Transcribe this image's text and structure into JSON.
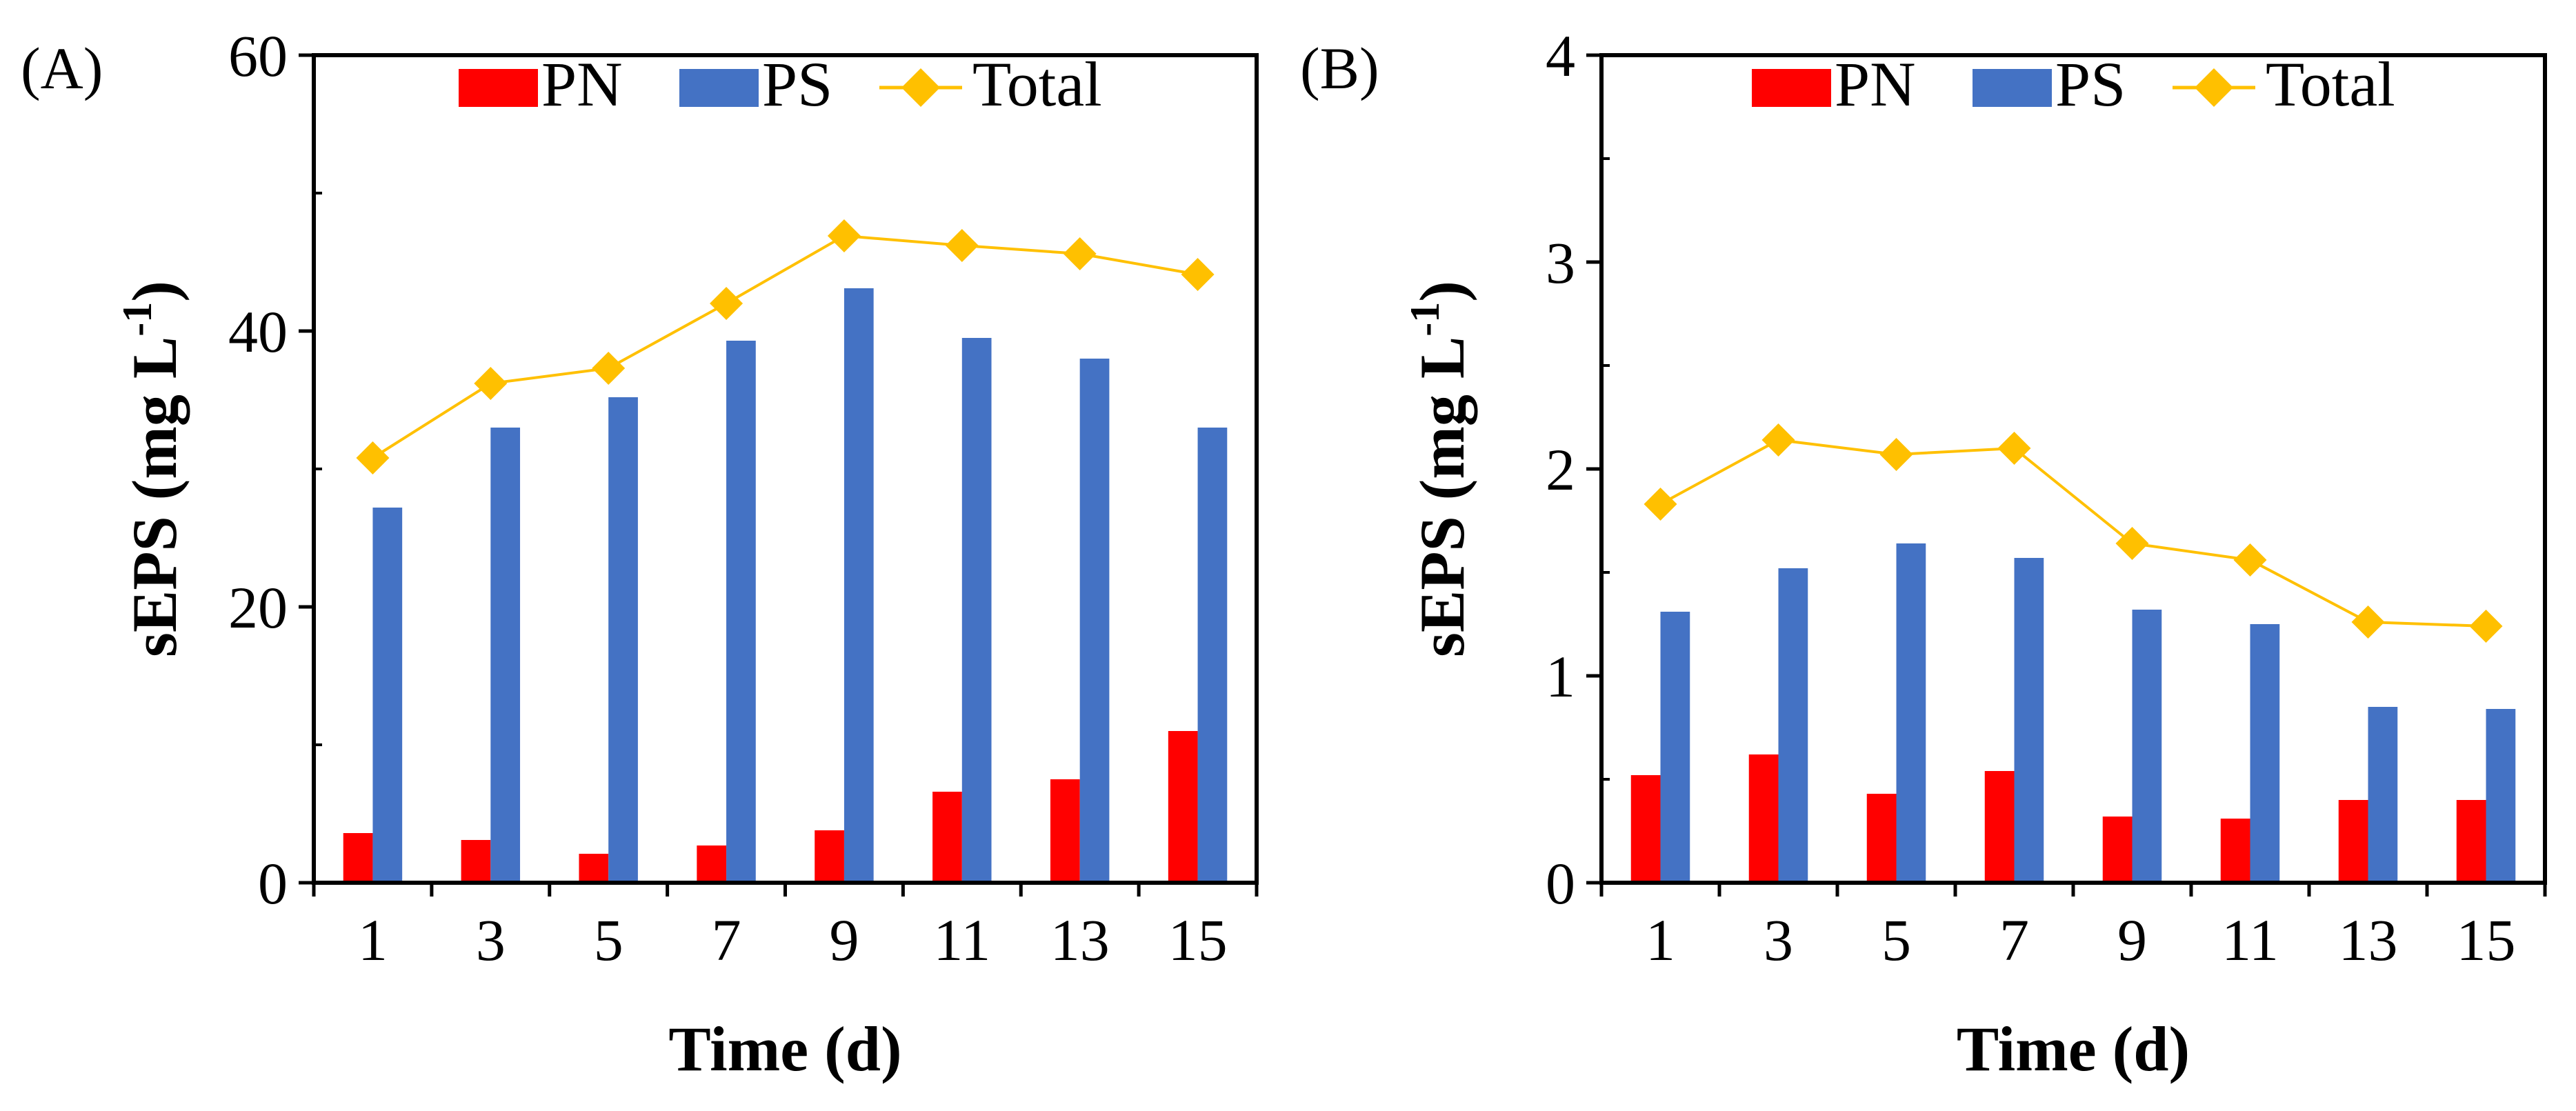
{
  "colors": {
    "pn": "#FF0000",
    "ps": "#4472C4",
    "total": "#FFC000",
    "axis": "#000000"
  },
  "chart_data": [
    {
      "type": "bar",
      "panel_label": "(A)",
      "categories": [
        "1",
        "3",
        "5",
        "7",
        "9",
        "11",
        "13",
        "15"
      ],
      "ylim": [
        0,
        60
      ],
      "yticks": [
        "0",
        "20",
        "40",
        "60"
      ],
      "ytick_values": [
        0,
        20,
        40,
        60
      ],
      "minor_tick_step": 10,
      "xlabel": "Time (d)",
      "ylabel": "sEPS (mg L",
      "ylabel_sup": "-1",
      "ylabel_close": ")",
      "grid": false,
      "legend_position": "top",
      "series": [
        {
          "name": "PN",
          "kind": "bar",
          "values": [
            3.6,
            3.1,
            2.1,
            2.7,
            3.8,
            6.6,
            7.5,
            11.0
          ]
        },
        {
          "name": "PS",
          "kind": "bar",
          "values": [
            27.2,
            33.0,
            35.2,
            39.3,
            43.1,
            39.5,
            38.0,
            33.0
          ]
        },
        {
          "name": "Total",
          "kind": "line",
          "values": [
            30.8,
            36.2,
            37.3,
            42.0,
            46.9,
            46.2,
            45.6,
            44.1
          ]
        }
      ]
    },
    {
      "type": "bar",
      "panel_label": "(B)",
      "categories": [
        "1",
        "3",
        "5",
        "7",
        "9",
        "11",
        "13",
        "15"
      ],
      "ylim": [
        0,
        4
      ],
      "yticks": [
        "0",
        "1",
        "2",
        "3",
        "4"
      ],
      "ytick_values": [
        0,
        1,
        2,
        3,
        4
      ],
      "minor_tick_step": 0.5,
      "xlabel": "Time (d)",
      "ylabel": "sEPS (mg L",
      "ylabel_sup": "-1",
      "ylabel_close": ")",
      "grid": false,
      "legend_position": "top",
      "series": [
        {
          "name": "PN",
          "kind": "bar",
          "values": [
            0.52,
            0.62,
            0.43,
            0.54,
            0.32,
            0.31,
            0.4,
            0.4
          ]
        },
        {
          "name": "PS",
          "kind": "bar",
          "values": [
            1.31,
            1.52,
            1.64,
            1.57,
            1.32,
            1.25,
            0.85,
            0.84
          ]
        },
        {
          "name": "Total",
          "kind": "line",
          "values": [
            1.83,
            2.14,
            2.07,
            2.1,
            1.64,
            1.56,
            1.26,
            1.24
          ]
        }
      ]
    }
  ]
}
